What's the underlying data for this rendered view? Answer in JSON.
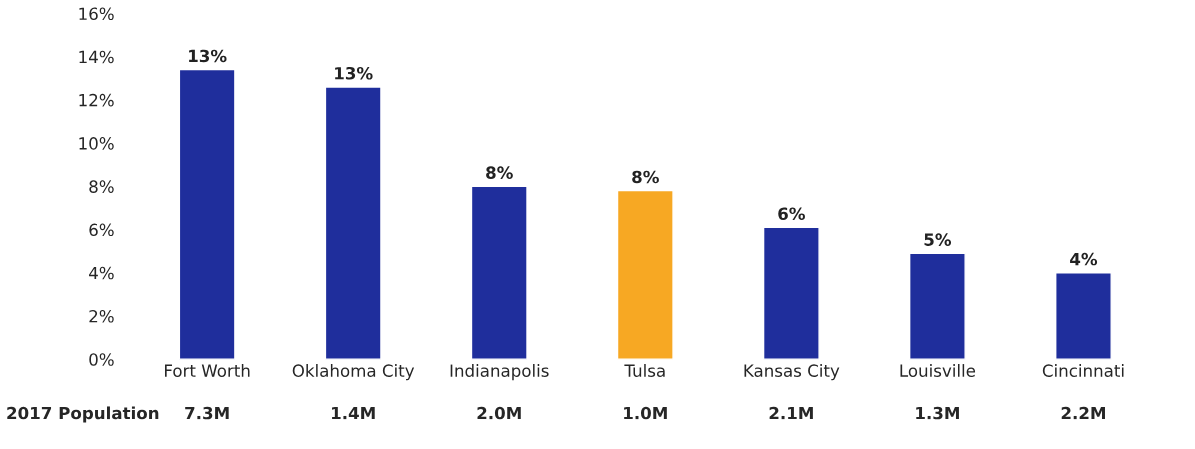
{
  "chart_data": {
    "type": "bar",
    "categories": [
      "Fort Worth",
      "Oklahoma City",
      "Indianapolis",
      "Tulsa",
      "Kansas City",
      "Louisville",
      "Cincinnati"
    ],
    "values": [
      13.4,
      12.6,
      8.0,
      7.8,
      6.1,
      4.9,
      4.0
    ],
    "colors": [
      "#1f2e9c",
      "#1f2e9c",
      "#1f2e9c",
      "#f7a823",
      "#1f2e9c",
      "#1f2e9c",
      "#1f2e9c"
    ],
    "value_labels": [
      "13%",
      "13%",
      "8%",
      "8%",
      "6%",
      "5%",
      "4%"
    ],
    "ylim": [
      0,
      16
    ],
    "yticks": [
      {
        "value": 0,
        "label": "0%"
      },
      {
        "value": 2,
        "label": "2%"
      },
      {
        "value": 4,
        "label": "4%"
      },
      {
        "value": 6,
        "label": "6%"
      },
      {
        "value": 8,
        "label": "8%"
      },
      {
        "value": 10,
        "label": "10%"
      },
      {
        "value": 12,
        "label": "12%"
      },
      {
        "value": 14,
        "label": "14%"
      },
      {
        "value": 16,
        "label": "16%"
      }
    ],
    "grid": false,
    "annotations": [
      "2017 Population",
      "7.3M",
      "1.4M",
      "2.0M",
      "1.0M",
      "2.1M",
      "1.3M",
      "2.2M"
    ]
  }
}
